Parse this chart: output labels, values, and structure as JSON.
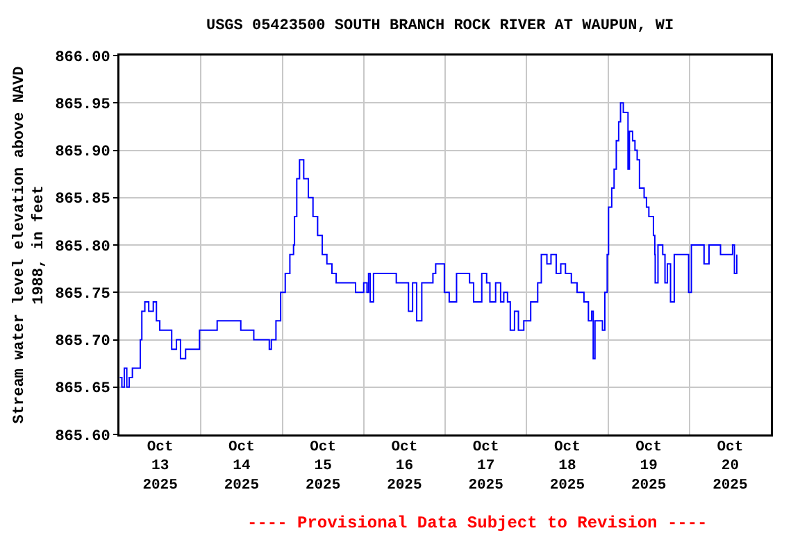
{
  "chart_data": {
    "type": "step",
    "title": "USGS 05423500 SOUTH BRANCH ROCK RIVER AT WAUPUN, WI",
    "ylabel": "Stream water level elevation above NAVD\n1988, in feet",
    "annotations": [
      "---- Provisional Data Subject to Revision ----"
    ],
    "x": [
      "2025-10-13T00:07",
      "2025-10-13T00:43",
      "2025-10-13T01:26",
      "2025-10-13T02:10",
      "2025-10-13T02:53",
      "2025-10-13T03:49",
      "2025-10-13T05:46",
      "2025-10-13T06:09",
      "2025-10-13T06:36",
      "2025-10-13T07:29",
      "2025-10-13T08:38",
      "2025-10-13T09:58",
      "2025-10-13T10:54",
      "2025-10-13T11:53",
      "2025-10-13T14:24",
      "2025-10-13T15:24",
      "2025-10-13T16:48",
      "2025-10-13T18:00",
      "2025-10-13T19:30",
      "2025-10-13T21:36",
      "2025-10-13T23:36",
      "2025-10-14T04:24",
      "2025-10-14T04:48",
      "2025-10-14T11:28",
      "2025-10-14T11:46",
      "2025-10-14T15:19",
      "2025-10-14T15:36",
      "2025-10-14T19:41",
      "2025-10-14T20:10",
      "2025-10-14T20:46",
      "2025-10-14T22:08",
      "2025-10-14T23:31",
      "2025-10-15T00:52",
      "2025-10-15T02:14",
      "2025-10-15T03:19",
      "2025-10-15T03:36",
      "2025-10-15T04:16",
      "2025-10-15T05:05",
      "2025-10-15T06:19",
      "2025-10-15T07:41",
      "2025-10-15T09:03",
      "2025-10-15T10:25",
      "2025-10-15T11:47",
      "2025-10-15T13:09",
      "2025-10-15T14:38",
      "2025-10-15T15:53",
      "2025-10-15T20:38",
      "2025-10-15T21:36",
      "2025-10-16T00:00",
      "2025-10-16T00:58",
      "2025-10-16T01:26",
      "2025-10-16T01:55",
      "2025-10-16T02:53",
      "2025-10-16T08:56",
      "2025-10-16T09:36",
      "2025-10-16T12:22",
      "2025-10-16T13:12",
      "2025-10-16T14:24",
      "2025-10-16T15:36",
      "2025-10-16T17:07",
      "2025-10-16T20:24",
      "2025-10-16T21:13",
      "2025-10-16T23:15",
      "2025-10-16T23:46",
      "2025-10-17T01:12",
      "2025-10-17T03:22",
      "2025-10-17T07:12",
      "2025-10-17T08:24",
      "2025-10-17T10:48",
      "2025-10-17T12:14",
      "2025-10-17T13:12",
      "2025-10-17T14:53",
      "2025-10-17T16:21",
      "2025-10-17T17:17",
      "2025-10-17T18:23",
      "2025-10-17T19:12",
      "2025-10-17T20:27",
      "2025-10-17T21:36",
      "2025-10-17T23:11",
      "2025-10-18T01:13",
      "2025-10-18T03:17",
      "2025-10-18T04:21",
      "2025-10-18T06:00",
      "2025-10-18T07:12",
      "2025-10-18T08:44",
      "2025-10-18T10:05",
      "2025-10-18T11:28",
      "2025-10-18T13:12",
      "2025-10-18T14:53",
      "2025-10-18T16:55",
      "2025-10-18T18:14",
      "2025-10-18T19:12",
      "2025-10-18T19:39",
      "2025-10-18T20:10",
      "2025-10-18T22:22",
      "2025-10-18T23:04",
      "2025-10-18T23:46",
      "2025-10-19T00:10",
      "2025-10-19T01:06",
      "2025-10-19T01:48",
      "2025-10-19T02:27",
      "2025-10-19T03:09",
      "2025-10-19T03:42",
      "2025-10-19T04:31",
      "2025-10-19T05:30",
      "2025-10-19T05:54",
      "2025-10-19T06:19",
      "2025-10-19T07:15",
      "2025-10-19T07:57",
      "2025-10-19T08:36",
      "2025-10-19T09:17",
      "2025-10-19T10:39",
      "2025-10-19T11:21",
      "2025-10-19T12:03",
      "2025-10-19T13:24",
      "2025-10-19T13:48",
      "2025-10-19T13:55",
      "2025-10-19T14:44",
      "2025-10-19T16:08",
      "2025-10-19T16:48",
      "2025-10-19T17:30",
      "2025-10-19T18:26",
      "2025-10-19T19:32",
      "2025-10-19T21:35",
      "2025-10-19T23:46",
      "2025-10-20T00:35",
      "2025-10-20T03:01",
      "2025-10-20T04:19",
      "2025-10-20T05:47",
      "2025-10-20T09:10",
      "2025-10-20T11:53",
      "2025-10-20T12:43",
      "2025-10-20T13:16",
      "2025-10-20T13:58"
    ],
    "series": [
      {
        "color": "#0000ff",
        "values": [
          865.66,
          865.65,
          865.67,
          865.65,
          865.66,
          865.67,
          865.67,
          865.7,
          865.73,
          865.74,
          865.73,
          865.74,
          865.72,
          865.71,
          865.71,
          865.69,
          865.7,
          865.68,
          865.69,
          865.69,
          865.71,
          865.71,
          865.72,
          865.72,
          865.71,
          865.71,
          865.7,
          865.7,
          865.69,
          865.7,
          865.72,
          865.75,
          865.77,
          865.79,
          865.8,
          865.83,
          865.87,
          865.89,
          865.87,
          865.85,
          865.83,
          865.81,
          865.79,
          865.78,
          865.77,
          865.76,
          865.76,
          865.75,
          865.76,
          865.75,
          865.77,
          865.74,
          865.77,
          865.77,
          865.76,
          865.76,
          865.73,
          865.76,
          865.72,
          865.76,
          865.77,
          865.78,
          865.78,
          865.75,
          865.74,
          865.77,
          865.76,
          865.74,
          865.77,
          865.76,
          865.74,
          865.76,
          865.74,
          865.75,
          865.74,
          865.71,
          865.73,
          865.71,
          865.72,
          865.74,
          865.76,
          865.79,
          865.78,
          865.79,
          865.77,
          865.78,
          865.77,
          865.76,
          865.75,
          865.74,
          865.72,
          865.73,
          865.68,
          865.72,
          865.71,
          865.75,
          865.79,
          865.84,
          865.86,
          865.88,
          865.91,
          865.93,
          865.95,
          865.94,
          865.94,
          865.88,
          865.92,
          865.91,
          865.9,
          865.89,
          865.86,
          865.85,
          865.84,
          865.83,
          865.81,
          865.79,
          865.76,
          865.8,
          865.79,
          865.76,
          865.78,
          865.74,
          865.79,
          865.79,
          865.75,
          865.8,
          865.8,
          865.78,
          865.8,
          865.79,
          865.79,
          865.8,
          865.77,
          865.79
        ]
      }
    ],
    "xlim": [
      "2025-10-13",
      "2025-10-21"
    ],
    "xticks": [
      {
        "value": "2025-10-13T12:00",
        "label": "Oct\n13\n2025"
      },
      {
        "value": "2025-10-14",
        "label": null
      },
      {
        "value": "2025-10-14T12:00",
        "label": "Oct\n14\n2025"
      },
      {
        "value": "2025-10-15",
        "label": null
      },
      {
        "value": "2025-10-15T12:00",
        "label": "Oct\n15\n2025"
      },
      {
        "value": "2025-10-16",
        "label": null
      },
      {
        "value": "2025-10-16T12:00",
        "label": "Oct\n16\n2025"
      },
      {
        "value": "2025-10-17",
        "label": null
      },
      {
        "value": "2025-10-17T12:00",
        "label": "Oct\n17\n2025"
      },
      {
        "value": "2025-10-18",
        "label": null
      },
      {
        "value": "2025-10-18T12:00",
        "label": "Oct\n18\n2025"
      },
      {
        "value": "2025-10-19",
        "label": null
      },
      {
        "value": "2025-10-19T12:00",
        "label": "Oct\n19\n2025"
      },
      {
        "value": "2025-10-20",
        "label": null
      },
      {
        "value": "2025-10-20T12:00",
        "label": "Oct\n20\n2025"
      }
    ],
    "ylim": [
      865.6,
      866.0
    ],
    "yticks": [
      {
        "value": 865.6,
        "label": "865.60"
      },
      {
        "value": 865.65,
        "label": "865.65"
      },
      {
        "value": 865.7,
        "label": "865.70"
      },
      {
        "value": 865.75,
        "label": "865.75"
      },
      {
        "value": 865.8,
        "label": "865.80"
      },
      {
        "value": 865.85,
        "label": "865.85"
      },
      {
        "value": 865.9,
        "label": "865.90"
      },
      {
        "value": 865.95,
        "label": "865.95"
      },
      {
        "value": 866.0,
        "label": "866.00"
      }
    ],
    "grid": true
  }
}
